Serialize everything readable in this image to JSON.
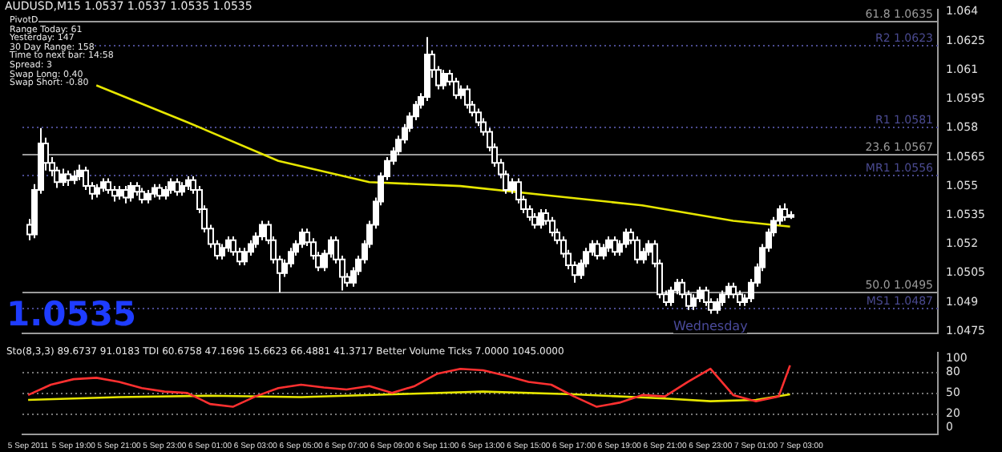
{
  "chart_data": [
    {
      "type": "candlestick",
      "x": [
        "2011-09-05T17:00",
        "2011-09-05T17:15",
        "2011-09-05T17:30",
        "2011-09-05T17:45",
        "2011-09-05T18:00",
        "2011-09-05T18:15",
        "2011-09-05T18:30",
        "2011-09-05T18:45",
        "2011-09-05T19:00",
        "2011-09-05T19:15",
        "2011-09-05T19:30",
        "2011-09-05T19:45",
        "2011-09-05T20:00",
        "2011-09-05T20:15",
        "2011-09-05T20:30",
        "2011-09-05T20:45",
        "2011-09-05T21:00",
        "2011-09-05T21:15",
        "2011-09-05T21:30",
        "2011-09-05T21:45",
        "2011-09-05T22:00",
        "2011-09-05T22:15",
        "2011-09-05T22:30",
        "2011-09-05T22:45",
        "2011-09-05T23:00",
        "2011-09-05T23:15",
        "2011-09-05T23:30",
        "2011-09-05T23:45",
        "2011-09-06T00:00",
        "2011-09-06T00:15",
        "2011-09-06T00:30",
        "2011-09-06T00:45",
        "2011-09-06T01:00",
        "2011-09-06T01:15",
        "2011-09-06T01:30",
        "2011-09-06T01:45",
        "2011-09-06T02:00",
        "2011-09-06T02:15",
        "2011-09-06T02:30",
        "2011-09-06T02:45",
        "2011-09-06T03:00",
        "2011-09-06T03:15",
        "2011-09-06T03:30",
        "2011-09-06T03:45",
        "2011-09-06T04:00",
        "2011-09-06T04:15",
        "2011-09-06T04:30",
        "2011-09-06T04:45",
        "2011-09-06T05:00",
        "2011-09-06T05:15",
        "2011-09-06T05:30",
        "2011-09-06T05:45",
        "2011-09-06T06:00",
        "2011-09-06T06:15",
        "2011-09-06T06:30",
        "2011-09-06T06:45",
        "2011-09-06T07:00",
        "2011-09-06T07:15",
        "2011-09-06T07:30",
        "2011-09-06T07:45",
        "2011-09-06T08:00",
        "2011-09-06T08:15",
        "2011-09-06T08:30",
        "2011-09-06T08:45",
        "2011-09-06T09:00",
        "2011-09-06T09:15",
        "2011-09-06T09:30",
        "2011-09-06T09:45",
        "2011-09-06T10:00",
        "2011-09-06T10:15",
        "2011-09-06T10:30",
        "2011-09-06T10:45",
        "2011-09-06T11:00",
        "2011-09-06T11:15",
        "2011-09-06T11:30",
        "2011-09-06T11:45",
        "2011-09-06T12:00",
        "2011-09-06T12:15",
        "2011-09-06T12:30",
        "2011-09-06T12:45",
        "2011-09-06T13:00",
        "2011-09-06T13:15",
        "2011-09-06T13:30",
        "2011-09-06T13:45",
        "2011-09-06T14:00",
        "2011-09-06T14:15",
        "2011-09-06T14:30",
        "2011-09-06T14:45",
        "2011-09-06T15:00",
        "2011-09-06T15:15",
        "2011-09-06T15:30",
        "2011-09-06T15:45",
        "2011-09-06T16:00",
        "2011-09-06T16:15",
        "2011-09-06T16:30",
        "2011-09-06T16:45",
        "2011-09-06T17:00",
        "2011-09-06T17:15",
        "2011-09-06T17:30",
        "2011-09-06T17:45",
        "2011-09-06T18:00",
        "2011-09-06T18:15",
        "2011-09-06T18:30",
        "2011-09-06T18:45",
        "2011-09-06T19:00",
        "2011-09-06T19:15",
        "2011-09-06T19:30",
        "2011-09-06T19:45",
        "2011-09-06T20:00",
        "2011-09-06T20:15",
        "2011-09-06T20:30",
        "2011-09-06T20:45",
        "2011-09-06T21:00",
        "2011-09-06T21:15",
        "2011-09-06T21:30",
        "2011-09-06T21:45",
        "2011-09-06T22:00",
        "2011-09-06T22:15",
        "2011-09-06T22:30",
        "2011-09-06T22:45",
        "2011-09-06T23:00",
        "2011-09-06T23:15",
        "2011-09-06T23:30",
        "2011-09-06T23:45",
        "2011-09-07T00:00",
        "2011-09-07T00:15",
        "2011-09-07T00:30",
        "2011-09-07T00:45",
        "2011-09-07T01:00",
        "2011-09-07T01:15",
        "2011-09-07T01:30",
        "2011-09-07T01:45",
        "2011-09-07T02:00",
        "2011-09-07T02:15",
        "2011-09-07T02:30"
      ],
      "ohlc": [
        [
          1.053,
          1.0533,
          1.0522,
          1.0525
        ],
        [
          1.0525,
          1.0551,
          1.0523,
          1.0548
        ],
        [
          1.0548,
          1.058,
          1.0546,
          1.0572
        ],
        [
          1.0572,
          1.0575,
          1.0558,
          1.0562
        ],
        [
          1.0562,
          1.0565,
          1.0555,
          1.0558
        ],
        [
          1.0558,
          1.056,
          1.0549,
          1.0552
        ],
        [
          1.0552,
          1.0559,
          1.055,
          1.0556
        ],
        [
          1.0556,
          1.0558,
          1.055,
          1.0553
        ],
        [
          1.0553,
          1.0558,
          1.0551,
          1.0555
        ],
        [
          1.0555,
          1.0561,
          1.0553,
          1.0558
        ],
        [
          1.0558,
          1.056,
          1.0548,
          1.055
        ],
        [
          1.055,
          1.0552,
          1.0543,
          1.0546
        ],
        [
          1.0546,
          1.0551,
          1.0544,
          1.0549
        ],
        [
          1.0549,
          1.0554,
          1.0547,
          1.0552
        ],
        [
          1.0552,
          1.0554,
          1.0546,
          1.0548
        ],
        [
          1.0548,
          1.055,
          1.0542,
          1.0545
        ],
        [
          1.0545,
          1.055,
          1.0543,
          1.0548
        ],
        [
          1.0548,
          1.055,
          1.0541,
          1.0544
        ],
        [
          1.0544,
          1.0552,
          1.0542,
          1.055
        ],
        [
          1.055,
          1.0552,
          1.0545,
          1.0547
        ],
        [
          1.0547,
          1.0549,
          1.0541,
          1.0543
        ],
        [
          1.0543,
          1.0548,
          1.0541,
          1.0546
        ],
        [
          1.0546,
          1.0551,
          1.0544,
          1.0549
        ],
        [
          1.0549,
          1.0551,
          1.0543,
          1.0545
        ],
        [
          1.0545,
          1.055,
          1.0543,
          1.0548
        ],
        [
          1.0548,
          1.0554,
          1.0546,
          1.0552
        ],
        [
          1.0552,
          1.0554,
          1.0545,
          1.0547
        ],
        [
          1.0547,
          1.0552,
          1.0545,
          1.055
        ],
        [
          1.055,
          1.0555,
          1.0548,
          1.0553
        ],
        [
          1.0553,
          1.0555,
          1.0546,
          1.0548
        ],
        [
          1.0548,
          1.055,
          1.0536,
          1.0538
        ],
        [
          1.0538,
          1.054,
          1.0526,
          1.0528
        ],
        [
          1.0528,
          1.053,
          1.0518,
          1.052
        ],
        [
          1.052,
          1.0522,
          1.0512,
          1.0514
        ],
        [
          1.0514,
          1.052,
          1.0512,
          1.0518
        ],
        [
          1.0518,
          1.0524,
          1.0516,
          1.0522
        ],
        [
          1.0522,
          1.0524,
          1.0514,
          1.0516
        ],
        [
          1.0516,
          1.0518,
          1.0509,
          1.0511
        ],
        [
          1.0511,
          1.0518,
          1.0509,
          1.0516
        ],
        [
          1.0516,
          1.0522,
          1.0514,
          1.052
        ],
        [
          1.052,
          1.0526,
          1.0518,
          1.0524
        ],
        [
          1.0524,
          1.0532,
          1.0522,
          1.053
        ],
        [
          1.053,
          1.0532,
          1.052,
          1.0522
        ],
        [
          1.0522,
          1.0524,
          1.051,
          1.0512
        ],
        [
          1.0512,
          1.0514,
          1.0495,
          1.0505
        ],
        [
          1.0505,
          1.0512,
          1.0503,
          1.051
        ],
        [
          1.051,
          1.0518,
          1.0508,
          1.0516
        ],
        [
          1.0516,
          1.0522,
          1.0514,
          1.052
        ],
        [
          1.052,
          1.0528,
          1.0518,
          1.0526
        ],
        [
          1.0526,
          1.0528,
          1.0519,
          1.0521
        ],
        [
          1.0521,
          1.0523,
          1.0512,
          1.0514
        ],
        [
          1.0514,
          1.0516,
          1.0506,
          1.0508
        ],
        [
          1.0508,
          1.0517,
          1.0506,
          1.0515
        ],
        [
          1.0515,
          1.0524,
          1.0513,
          1.0522
        ],
        [
          1.0522,
          1.0524,
          1.051,
          1.0512
        ],
        [
          1.0512,
          1.0514,
          1.0496,
          1.0503
        ],
        [
          1.0503,
          1.0505,
          1.0498,
          1.05
        ],
        [
          1.05,
          1.0508,
          1.0498,
          1.0506
        ],
        [
          1.0506,
          1.0514,
          1.0504,
          1.0512
        ],
        [
          1.0512,
          1.0522,
          1.051,
          1.052
        ],
        [
          1.052,
          1.0532,
          1.0518,
          1.053
        ],
        [
          1.053,
          1.0544,
          1.0528,
          1.0542
        ],
        [
          1.0542,
          1.0557,
          1.054,
          1.0555
        ],
        [
          1.0555,
          1.0565,
          1.0553,
          1.0563
        ],
        [
          1.0563,
          1.057,
          1.0561,
          1.0568
        ],
        [
          1.0568,
          1.0576,
          1.0566,
          1.0574
        ],
        [
          1.0574,
          1.0582,
          1.0572,
          1.058
        ],
        [
          1.058,
          1.0588,
          1.0578,
          1.0586
        ],
        [
          1.0586,
          1.0594,
          1.0584,
          1.0592
        ],
        [
          1.0592,
          1.0598,
          1.059,
          1.0596
        ],
        [
          1.0596,
          1.0627,
          1.0594,
          1.0618
        ],
        [
          1.0618,
          1.062,
          1.0606,
          1.061
        ],
        [
          1.061,
          1.0612,
          1.06,
          1.0602
        ],
        [
          1.0602,
          1.061,
          1.06,
          1.0608
        ],
        [
          1.0608,
          1.061,
          1.0602,
          1.0604
        ],
        [
          1.0604,
          1.0606,
          1.0595,
          1.0597
        ],
        [
          1.0597,
          1.0602,
          1.0595,
          1.06
        ],
        [
          1.06,
          1.0602,
          1.059,
          1.0592
        ],
        [
          1.0592,
          1.0594,
          1.0586,
          1.0588
        ],
        [
          1.0588,
          1.059,
          1.0581,
          1.0583
        ],
        [
          1.0583,
          1.0585,
          1.0576,
          1.0578
        ],
        [
          1.0578,
          1.058,
          1.0568,
          1.057
        ],
        [
          1.057,
          1.0572,
          1.056,
          1.0562
        ],
        [
          1.0562,
          1.0564,
          1.0554,
          1.0556
        ],
        [
          1.0556,
          1.0558,
          1.0546,
          1.0548
        ],
        [
          1.0548,
          1.0554,
          1.0546,
          1.0552
        ],
        [
          1.0552,
          1.0554,
          1.0541,
          1.0543
        ],
        [
          1.0543,
          1.0545,
          1.0536,
          1.0538
        ],
        [
          1.0538,
          1.054,
          1.0532,
          1.0534
        ],
        [
          1.0534,
          1.0536,
          1.0528,
          1.053
        ],
        [
          1.053,
          1.0538,
          1.0528,
          1.0536
        ],
        [
          1.0536,
          1.0538,
          1.053,
          1.0532
        ],
        [
          1.0532,
          1.0534,
          1.0524,
          1.0526
        ],
        [
          1.0526,
          1.0528,
          1.052,
          1.0522
        ],
        [
          1.0522,
          1.0524,
          1.0513,
          1.0515
        ],
        [
          1.0515,
          1.0517,
          1.0507,
          1.0509
        ],
        [
          1.0509,
          1.0511,
          1.05,
          1.0504
        ],
        [
          1.0504,
          1.0512,
          1.0502,
          1.051
        ],
        [
          1.051,
          1.0518,
          1.0508,
          1.0516
        ],
        [
          1.0516,
          1.0522,
          1.0514,
          1.052
        ],
        [
          1.052,
          1.0522,
          1.0512,
          1.0514
        ],
        [
          1.0514,
          1.052,
          1.0512,
          1.0518
        ],
        [
          1.0518,
          1.0524,
          1.0516,
          1.0522
        ],
        [
          1.0522,
          1.0524,
          1.0514,
          1.0516
        ],
        [
          1.0516,
          1.0522,
          1.0514,
          1.052
        ],
        [
          1.052,
          1.0528,
          1.0518,
          1.0526
        ],
        [
          1.0526,
          1.0528,
          1.052,
          1.0522
        ],
        [
          1.0522,
          1.0524,
          1.051,
          1.0512
        ],
        [
          1.0512,
          1.0518,
          1.051,
          1.0516
        ],
        [
          1.0516,
          1.0522,
          1.0514,
          1.052
        ],
        [
          1.052,
          1.0522,
          1.0508,
          1.051
        ],
        [
          1.051,
          1.0512,
          1.0492,
          1.0494
        ],
        [
          1.0494,
          1.0496,
          1.0488,
          1.049
        ],
        [
          1.049,
          1.0498,
          1.0488,
          1.0496
        ],
        [
          1.0496,
          1.0502,
          1.0494,
          1.05
        ],
        [
          1.05,
          1.0502,
          1.0492,
          1.0494
        ],
        [
          1.0494,
          1.0496,
          1.0486,
          1.0488
        ],
        [
          1.0488,
          1.0494,
          1.0486,
          1.0492
        ],
        [
          1.0492,
          1.0498,
          1.049,
          1.0496
        ],
        [
          1.0496,
          1.0498,
          1.0488,
          1.049
        ],
        [
          1.049,
          1.0492,
          1.0484,
          1.0486
        ],
        [
          1.0486,
          1.0492,
          1.0484,
          1.049
        ],
        [
          1.049,
          1.0496,
          1.0488,
          1.0494
        ],
        [
          1.0494,
          1.05,
          1.0492,
          1.0498
        ],
        [
          1.0498,
          1.05,
          1.0492,
          1.0494
        ],
        [
          1.0494,
          1.0496,
          1.0488,
          1.049
        ],
        [
          1.049,
          1.0494,
          1.0488,
          1.0492
        ],
        [
          1.0492,
          1.0502,
          1.049,
          1.05
        ],
        [
          1.05,
          1.051,
          1.0498,
          1.0508
        ],
        [
          1.0508,
          1.052,
          1.0506,
          1.0518
        ],
        [
          1.0518,
          1.0528,
          1.0516,
          1.0526
        ],
        [
          1.0526,
          1.0534,
          1.0524,
          1.0532
        ],
        [
          1.0532,
          1.054,
          1.053,
          1.0538
        ],
        [
          1.0538,
          1.0541,
          1.0532,
          1.0534
        ],
        [
          1.0534,
          1.0537,
          1.0533,
          1.0535
        ]
      ],
      "series": [
        {
          "type": "line",
          "color": "#e6e600",
          "x": [
            "2011-09-05T20:00",
            "2011-09-06T00:00",
            "2011-09-06T04:00",
            "2011-09-06T08:00",
            "2011-09-06T12:00",
            "2011-09-06T16:00",
            "2011-09-06T20:00",
            "2011-09-07T00:00",
            "2011-09-07T02:30"
          ],
          "values": [
            1.0602,
            1.0583,
            1.0563,
            1.0552,
            1.055,
            1.0545,
            1.054,
            1.0532,
            1.0529
          ]
        }
      ],
      "xlim": [
        "2011-09-05T16:45",
        "2011-09-07T09:00"
      ],
      "xticks": [
        {
          "value": "2011-09-05T17:00",
          "label": null
        },
        {
          "value": "2011-09-05T19:00",
          "label": null
        },
        {
          "value": "2011-09-05T21:00",
          "label": null
        },
        {
          "value": "2011-09-05T23:00",
          "label": null
        },
        {
          "value": "2011-09-06T01:00",
          "label": null
        },
        {
          "value": "2011-09-06T03:00",
          "label": null
        },
        {
          "value": "2011-09-06T05:00",
          "label": null
        },
        {
          "value": "2011-09-06T07:00",
          "label": null
        },
        {
          "value": "2011-09-06T09:00",
          "label": null
        },
        {
          "value": "2011-09-06T11:00",
          "label": null
        },
        {
          "value": "2011-09-06T13:00",
          "label": null
        },
        {
          "value": "2011-09-06T15:00",
          "label": null
        },
        {
          "value": "2011-09-06T17:00",
          "label": null
        },
        {
          "value": "2011-09-06T19:00",
          "label": null
        },
        {
          "value": "2011-09-06T21:00",
          "label": null
        },
        {
          "value": "2011-09-06T23:00",
          "label": null
        },
        {
          "value": "2011-09-07T01:00",
          "label": null
        },
        {
          "value": "2011-09-07T03:00",
          "label": null
        }
      ],
      "ylim": [
        1.0474,
        1.0641
      ],
      "yticks": [
        1.0475,
        1.049,
        1.0505,
        1.052,
        1.0535,
        1.055,
        1.0565,
        1.058,
        1.0595,
        1.061,
        1.0625,
        1.064
      ],
      "tick_labels": "y",
      "marker": "none",
      "ref_lines": [
        {
          "axis": "y",
          "value": 1.0635,
          "label": "61.8 1.0635",
          "color": "#9a9a9a"
        },
        {
          "axis": "y",
          "value": 1.0623,
          "label": "R2 1.0623",
          "color": "#4a4a90",
          "line_style": "dotted"
        },
        {
          "axis": "y",
          "value": 1.0581,
          "label": "R1 1.0581",
          "color": "#4a4a90",
          "line_style": "dotted"
        },
        {
          "axis": "y",
          "value": 1.0567,
          "label": "23.6 1.0567",
          "color": "#9a9a9a"
        },
        {
          "axis": "y",
          "value": 1.0556,
          "label": "MR1 1.0556",
          "color": "#4a4a90",
          "line_style": "dotted"
        },
        {
          "axis": "y",
          "value": 1.0495,
          "label": "50.0 1.0495",
          "color": "#9a9a9a"
        },
        {
          "axis": "y",
          "value": 1.0487,
          "label": "MS1 1.0487",
          "color": "#4a4a90",
          "line_style": "dotted"
        }
      ],
      "annotations": [
        "AUDUSD,M15 1.0537 1.0537 1.0535 1.0535",
        "PivotD",
        "Range Today: 61",
        "Yesterday: 147",
        "30 Day Range: 158",
        "Time to next bar: 14:58",
        "Spread: 3",
        "Swap Long: 0.40",
        "Swap Short: -0.80",
        "1.0535",
        "Wednesday"
      ]
    },
    {
      "type": "line",
      "series": [
        {
          "type": "line",
          "color": "#ff3030",
          "x": [
            "2011-09-05T17:00",
            "2011-09-05T18:00",
            "2011-09-05T19:00",
            "2011-09-05T20:00",
            "2011-09-05T21:00",
            "2011-09-05T22:00",
            "2011-09-05T23:00",
            "2011-09-06T00:00",
            "2011-09-06T01:00",
            "2011-09-06T02:00",
            "2011-09-06T03:00",
            "2011-09-06T04:00",
            "2011-09-06T05:00",
            "2011-09-06T06:00",
            "2011-09-06T07:00",
            "2011-09-06T08:00",
            "2011-09-06T09:00",
            "2011-09-06T10:00",
            "2011-09-06T11:00",
            "2011-09-06T12:00",
            "2011-09-06T13:00",
            "2011-09-06T14:00",
            "2011-09-06T15:00",
            "2011-09-06T16:00",
            "2011-09-06T17:00",
            "2011-09-06T18:00",
            "2011-09-06T19:00",
            "2011-09-06T20:00",
            "2011-09-06T21:00",
            "2011-09-06T22:00",
            "2011-09-06T23:00",
            "2011-09-07T00:00",
            "2011-09-07T01:00",
            "2011-09-07T02:00",
            "2011-09-07T02:30"
          ],
          "values": [
            47,
            62,
            70,
            72,
            66,
            57,
            52,
            50,
            34,
            30,
            45,
            57,
            62,
            58,
            55,
            60,
            50,
            60,
            78,
            85,
            83,
            75,
            66,
            62,
            45,
            30,
            36,
            47,
            45,
            66,
            85,
            47,
            38,
            45,
            90
          ]
        },
        {
          "type": "line",
          "color": "#e6e600",
          "x": [
            "2011-09-05T17:00",
            "2011-09-05T21:00",
            "2011-09-06T01:00",
            "2011-09-06T05:00",
            "2011-09-06T09:00",
            "2011-09-06T13:00",
            "2011-09-06T17:00",
            "2011-09-06T21:00",
            "2011-09-06T23:00",
            "2011-09-07T01:00",
            "2011-09-07T02:30"
          ],
          "values": [
            40,
            44,
            46,
            44,
            48,
            52,
            48,
            42,
            38,
            40,
            48
          ]
        }
      ],
      "xlim": [
        "2011-09-05T16:45",
        "2011-09-07T09:00"
      ],
      "xticks": [
        {
          "value": "2011-09-05T17:00",
          "label": "5 Sep 2011"
        },
        {
          "value": "2011-09-05T19:00",
          "label": "5 Sep 19:00"
        },
        {
          "value": "2011-09-05T21:00",
          "label": "5 Sep 21:00"
        },
        {
          "value": "2011-09-05T23:00",
          "label": "5 Sep 23:00"
        },
        {
          "value": "2011-09-06T01:00",
          "label": "6 Sep 01:00"
        },
        {
          "value": "2011-09-06T03:00",
          "label": "6 Sep 03:00"
        },
        {
          "value": "2011-09-06T05:00",
          "label": "6 Sep 05:00"
        },
        {
          "value": "2011-09-06T07:00",
          "label": "6 Sep 07:00"
        },
        {
          "value": "2011-09-06T09:00",
          "label": "6 Sep 09:00"
        },
        {
          "value": "2011-09-06T11:00",
          "label": "6 Sep 11:00"
        },
        {
          "value": "2011-09-06T13:00",
          "label": "6 Sep 13:00"
        },
        {
          "value": "2011-09-06T15:00",
          "label": "6 Sep 15:00"
        },
        {
          "value": "2011-09-06T17:00",
          "label": "6 Sep 17:00"
        },
        {
          "value": "2011-09-06T19:00",
          "label": "6 Sep 19:00"
        },
        {
          "value": "2011-09-06T21:00",
          "label": "6 Sep 21:00"
        },
        {
          "value": "2011-09-06T23:00",
          "label": "6 Sep 23:00"
        },
        {
          "value": "2011-09-07T01:00",
          "label": "7 Sep 01:00"
        },
        {
          "value": "2011-09-07T03:00",
          "label": "7 Sep 03:00"
        }
      ],
      "ylim": [
        -10,
        108
      ],
      "yticks": [
        0,
        20,
        50,
        80,
        100
      ],
      "marker": "none",
      "ref_lines": [
        {
          "axis": "y",
          "value": 80,
          "color": "#777777",
          "line_style": "dotted"
        },
        {
          "axis": "y",
          "value": 50,
          "color": "#777777",
          "line_style": "dotted"
        },
        {
          "axis": "y",
          "value": 20,
          "color": "#777777",
          "line_style": "dotted"
        }
      ],
      "annotations": [
        "Sto(8,3,3) 89.6737 91.0183  TDI 60.6758 47.1696 15.6623 66.4881 41.3717  Better Volume Ticks 7.0000 1045.0000"
      ]
    }
  ]
}
